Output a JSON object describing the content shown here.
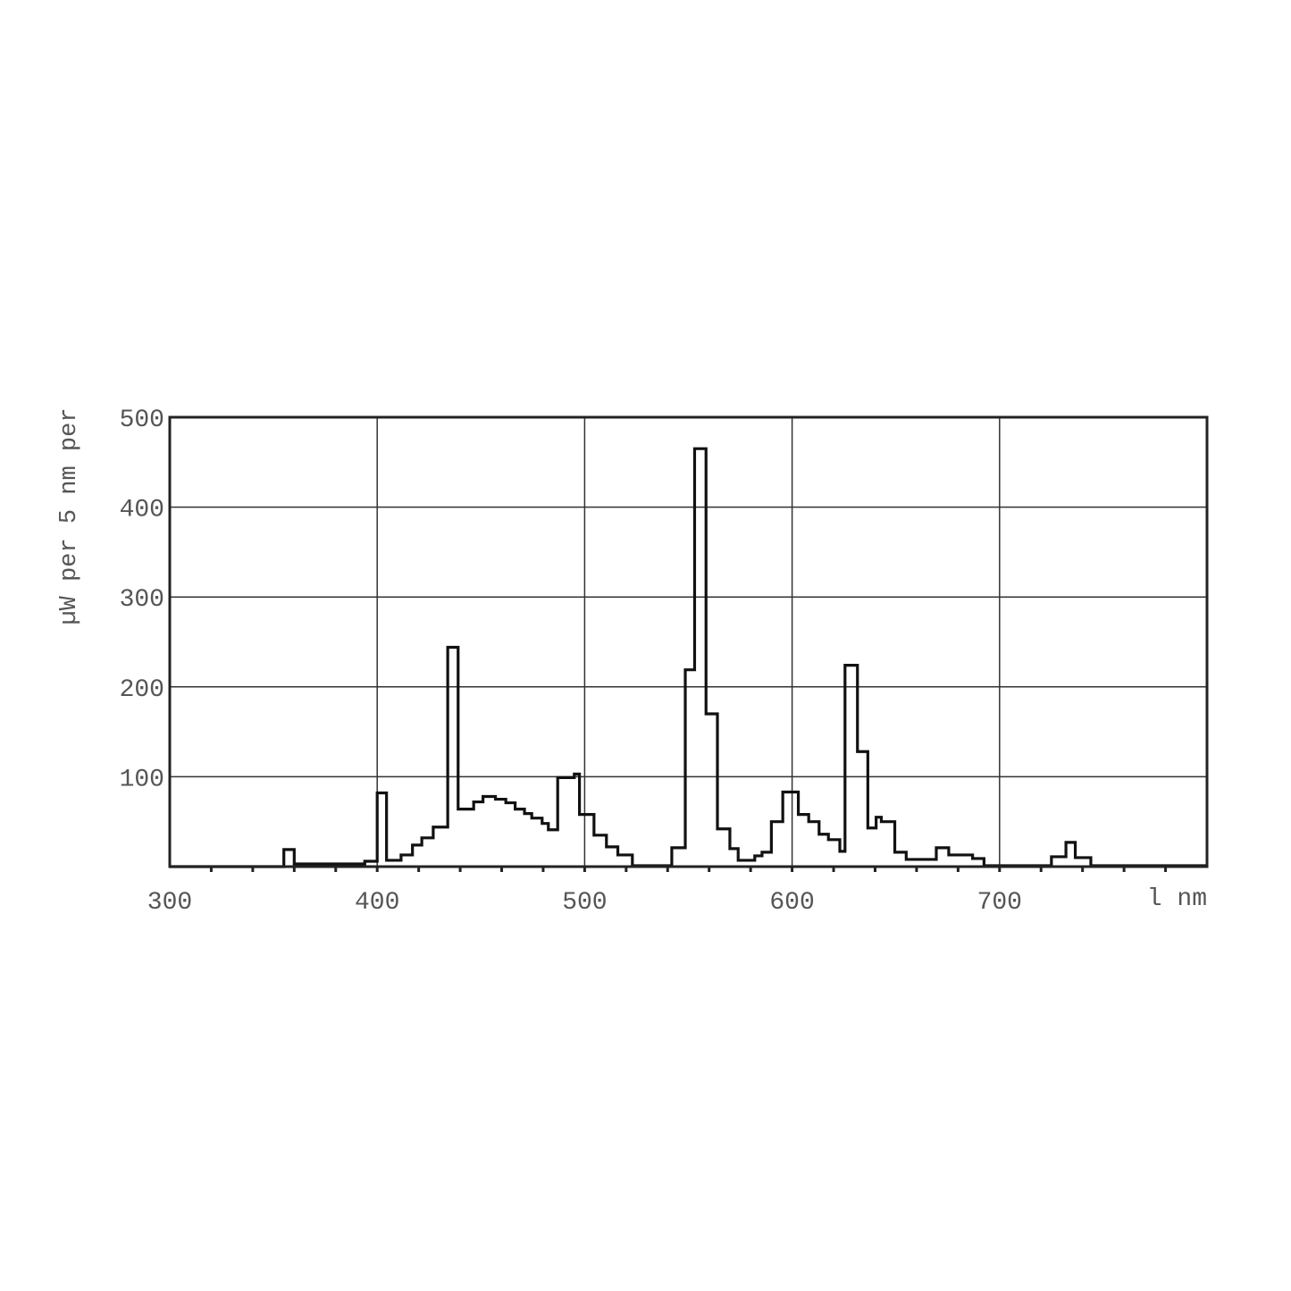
{
  "chart_data": {
    "type": "line",
    "step": true,
    "title": "",
    "xlabel": "l nm",
    "ylabel": "µW per 5 nm per",
    "xlim": [
      300,
      800
    ],
    "ylim": [
      0,
      500
    ],
    "xticks": [
      300,
      400,
      500,
      600,
      700
    ],
    "xtick_labels": [
      "300",
      "400",
      "500",
      "600",
      "700"
    ],
    "x_minor_tick_step": 20,
    "yticks": [
      100,
      200,
      300,
      400,
      500
    ],
    "ytick_labels": [
      "100",
      "200",
      "300",
      "400",
      "500"
    ],
    "grid": true,
    "line_color": "#111111",
    "grid_color": "#333333",
    "series": [
      {
        "steps": [
          [
            300,
            0
          ],
          [
            355,
            19
          ],
          [
            360,
            3
          ],
          [
            394,
            6
          ],
          [
            400,
            82
          ],
          [
            404.5,
            7
          ],
          [
            411.5,
            13
          ],
          [
            417,
            24
          ],
          [
            421.5,
            32
          ],
          [
            427,
            44
          ],
          [
            434,
            244
          ],
          [
            439,
            64
          ],
          [
            446.5,
            72
          ],
          [
            451,
            78
          ],
          [
            457,
            75
          ],
          [
            462,
            71
          ],
          [
            466.5,
            64
          ],
          [
            471,
            59
          ],
          [
            474.5,
            54
          ],
          [
            479.5,
            48
          ],
          [
            482.5,
            41
          ],
          [
            487,
            99
          ],
          [
            495,
            103
          ],
          [
            497.5,
            58
          ],
          [
            504.5,
            35
          ],
          [
            510.5,
            22
          ],
          [
            516,
            13
          ],
          [
            523,
            1
          ],
          [
            542,
            21
          ],
          [
            548.5,
            219
          ],
          [
            553,
            465
          ],
          [
            558.5,
            170
          ],
          [
            564,
            42
          ],
          [
            570,
            20
          ],
          [
            574,
            7
          ],
          [
            582,
            12
          ],
          [
            585.5,
            16
          ],
          [
            590,
            50
          ],
          [
            595.5,
            83
          ],
          [
            603,
            58
          ],
          [
            608,
            50
          ],
          [
            613,
            36
          ],
          [
            617.5,
            30
          ],
          [
            623,
            17
          ],
          [
            625.5,
            224
          ],
          [
            631.5,
            128
          ],
          [
            636.5,
            43
          ],
          [
            640.5,
            55
          ],
          [
            643,
            50
          ],
          [
            649.5,
            16
          ],
          [
            655,
            8
          ],
          [
            669.5,
            21
          ],
          [
            675.5,
            13
          ],
          [
            687,
            9
          ],
          [
            692.5,
            1
          ],
          [
            725,
            11
          ],
          [
            732,
            27
          ],
          [
            736.5,
            10
          ],
          [
            744,
            1
          ]
        ],
        "x_end": 800
      }
    ]
  }
}
